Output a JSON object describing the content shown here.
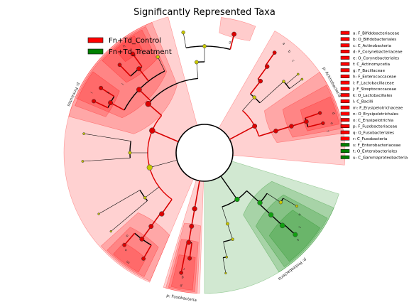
{
  "chart_data": {
    "type": "cladogram",
    "title": "Significantly Represented Taxa",
    "groups": [
      {
        "name": "Fn+Td_Control",
        "color": "#ff0000"
      },
      {
        "name": "Fn+Td_Treatment",
        "color": "#008000"
      }
    ],
    "node_colors": {
      "neutral": "#c8c800",
      "Fn+Td_Control": "#dd0000",
      "Fn+Td_Treatment": "#10a010"
    },
    "sector_colors": {
      "Fn+Td_Control": "#ff0000",
      "Fn+Td_Treatment": "#008000"
    },
    "phylum_labels": [
      {
        "label": "p: Actinobacteria",
        "group": "Fn+Td_Control"
      },
      {
        "label": "p: Firmicutes",
        "group": "Fn+Td_Control"
      },
      {
        "label": "p: Fusobacteria",
        "group": "Fn+Td_Control"
      },
      {
        "label": "p: Proteobacteria",
        "group": "Fn+Td_Treatment"
      }
    ],
    "clades": [
      {
        "key": "a",
        "label": "a: F_Bifidobacteriaceae",
        "group": "Fn+Td_Control"
      },
      {
        "key": "b",
        "label": "b: O_Bifidobacteriales",
        "group": "Fn+Td_Control"
      },
      {
        "key": "c",
        "label": "c: C_Actinobacteria",
        "group": "Fn+Td_Control"
      },
      {
        "key": "d",
        "label": "d: F_Corynebacteriaceae",
        "group": "Fn+Td_Control"
      },
      {
        "key": "e",
        "label": "e: O_Corynebacteriales",
        "group": "Fn+Td_Control"
      },
      {
        "key": "f",
        "label": "f: C_Actinomycetia",
        "group": "Fn+Td_Control"
      },
      {
        "key": "g",
        "label": "g: F_Bacillaceae",
        "group": "Fn+Td_Control"
      },
      {
        "key": "h",
        "label": "h: F_Enterococcaceae",
        "group": "Fn+Td_Control"
      },
      {
        "key": "i",
        "label": "i: F_Lactobacillaceae",
        "group": "Fn+Td_Control"
      },
      {
        "key": "j",
        "label": "j: F_Streptococcaceae",
        "group": "Fn+Td_Control"
      },
      {
        "key": "k",
        "label": "k: O_Lactobacillales",
        "group": "Fn+Td_Control"
      },
      {
        "key": "l",
        "label": "l: C_Bacilli",
        "group": "Fn+Td_Control"
      },
      {
        "key": "m",
        "label": "m: F_Erysipelotrichaceae",
        "group": "Fn+Td_Control"
      },
      {
        "key": "n",
        "label": "n: O_Erysipelotrichales",
        "group": "Fn+Td_Control"
      },
      {
        "key": "o",
        "label": "o: C_Erysipelotrichia",
        "group": "Fn+Td_Control"
      },
      {
        "key": "p",
        "label": "p: F_Fusobacteriaceae",
        "group": "Fn+Td_Control"
      },
      {
        "key": "q",
        "label": "q: O_Fusobacteriales",
        "group": "Fn+Td_Control"
      },
      {
        "key": "r",
        "label": "r: C_Fusobacteria",
        "group": "Fn+Td_Control"
      },
      {
        "key": "s",
        "label": "s: F_Enterobacteriaceae",
        "group": "Fn+Td_Treatment"
      },
      {
        "key": "t",
        "label": "t: O_Enterobacteriales",
        "group": "Fn+Td_Treatment"
      },
      {
        "key": "u",
        "label": "u: C_Gammaproteobacteria",
        "group": "Fn+Td_Treatment"
      }
    ]
  }
}
